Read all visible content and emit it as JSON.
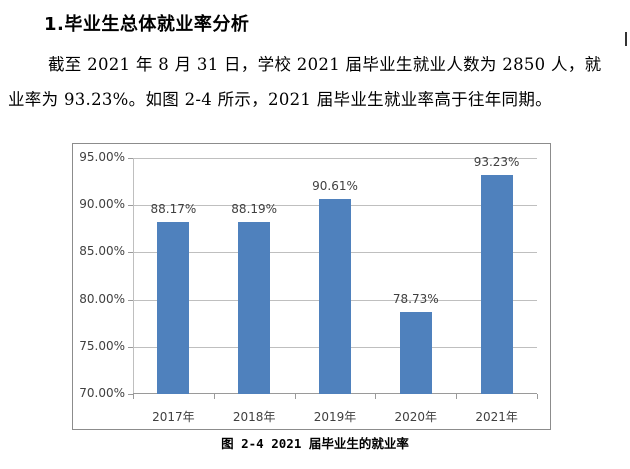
{
  "section": {
    "heading": "1.毕业生总体就业率分析",
    "paragraph": "截至 2021 年 8 月 31 日，学校 2021 届毕业生就业人数为 2850 人，就业率为 93.23%。如图 2-4 所示，2021 届毕业生就业率高于往年同期。"
  },
  "chart_data": {
    "type": "bar",
    "title": "",
    "categories": [
      "2017年",
      "2018年",
      "2019年",
      "2020年",
      "2021年"
    ],
    "values": [
      88.17,
      88.19,
      90.61,
      78.73,
      93.23
    ],
    "value_labels": [
      "88.17%",
      "88.19%",
      "90.61%",
      "78.73%",
      "93.23%"
    ],
    "xlabel": "",
    "ylabel": "",
    "ylim": [
      70,
      95
    ],
    "yticks": [
      "70.00%",
      "75.00%",
      "80.00%",
      "85.00%",
      "90.00%",
      "95.00%"
    ],
    "grid": true,
    "legend": "none",
    "bar_color": "#4f81bd",
    "caption": "图 2-4 2021 届毕业生的就业率"
  }
}
